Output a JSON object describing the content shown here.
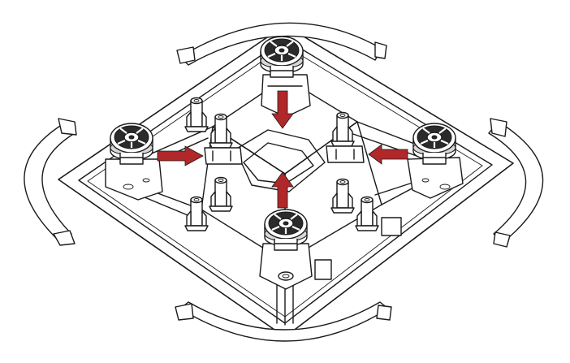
{
  "diagram": {
    "subject": "quadcopter-frame-motor-mounting",
    "motor_count": 4,
    "arrow_count": 4,
    "colors": {
      "line": "#1a1a1a",
      "background": "#ffffff",
      "arrow": "#b0282a",
      "motor_dark": "#2b2b2b",
      "motor_light": "#d6d6d6"
    },
    "arrows": [
      {
        "id": "top",
        "direction": "down"
      },
      {
        "id": "left",
        "direction": "right"
      },
      {
        "id": "right",
        "direction": "left"
      },
      {
        "id": "bottom",
        "direction": "up"
      }
    ]
  }
}
